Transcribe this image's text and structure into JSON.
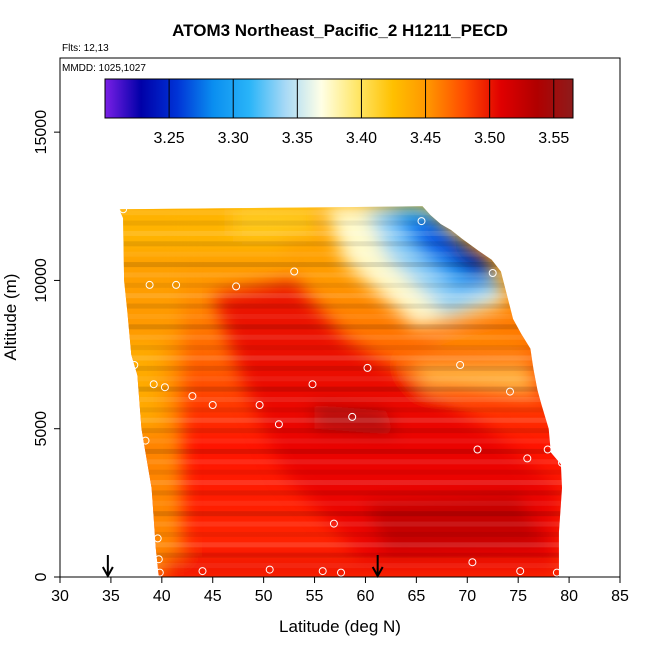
{
  "chart_data": {
    "type": "heatmap",
    "title": "ATOM3 Northeast_Pacific_2 H1211_PECD",
    "subtitle_lines": [
      "Flts: 12,13",
      "MMDD: 1025,1027"
    ],
    "xlabel": "Latitude (deg N)",
    "ylabel": "Altitude (m)",
    "xlim": [
      30,
      85
    ],
    "ylim": [
      0,
      17500
    ],
    "x_ticks": [
      "30",
      "35",
      "40",
      "45",
      "50",
      "55",
      "60",
      "65",
      "70",
      "75",
      "80",
      "85"
    ],
    "x_tick_values": [
      30,
      35,
      40,
      45,
      50,
      55,
      60,
      65,
      70,
      75,
      80,
      85
    ],
    "y_ticks": [
      "0",
      "5000",
      "10000",
      "15000"
    ],
    "y_tick_values": [
      0,
      5000,
      10000,
      15000
    ],
    "colorbar": {
      "min": 3.2,
      "max": 3.565,
      "tick_labels": [
        "3.25",
        "3.30",
        "3.35",
        "3.40",
        "3.45",
        "3.50",
        "3.55"
      ],
      "tick_values": [
        3.25,
        3.3,
        3.35,
        3.4,
        3.45,
        3.5,
        3.55
      ],
      "colors": [
        "#7a1fe6",
        "#0000a8",
        "#0033d6",
        "#0a8ef0",
        "#29b4f8",
        "#a7d9f6",
        "#ffffe6",
        "#ffe76a",
        "#ffc000",
        "#ff9400",
        "#ff4a00",
        "#e00000",
        "#b00000",
        "#8e1b1b"
      ]
    },
    "observation_points": [
      [
        36.2,
        12400
      ],
      [
        38.8,
        9850
      ],
      [
        41.4,
        9850
      ],
      [
        47.3,
        9800
      ],
      [
        53,
        10300
      ],
      [
        65.5,
        12000
      ],
      [
        72.5,
        10250
      ],
      [
        37.3,
        7150
      ],
      [
        39.2,
        6500
      ],
      [
        40.3,
        6400
      ],
      [
        43,
        6100
      ],
      [
        45,
        5800
      ],
      [
        49.6,
        5800
      ],
      [
        51.5,
        5150
      ],
      [
        54.8,
        6500
      ],
      [
        58.7,
        5400
      ],
      [
        60.2,
        7050
      ],
      [
        69.3,
        7150
      ],
      [
        76.8,
        7400
      ],
      [
        74.2,
        6250
      ],
      [
        38.4,
        4600
      ],
      [
        71,
        4300
      ],
      [
        75.9,
        4000
      ],
      [
        77.9,
        4300
      ],
      [
        79.3,
        3850
      ],
      [
        39.6,
        1300
      ],
      [
        56.9,
        1800
      ],
      [
        39.7,
        600
      ],
      [
        39.8,
        150
      ],
      [
        44,
        200
      ],
      [
        50.6,
        250
      ],
      [
        55.8,
        200
      ],
      [
        57.6,
        150
      ],
      [
        70.5,
        500
      ],
      [
        75.2,
        200
      ],
      [
        78.8,
        150
      ]
    ],
    "flight_leg_markers_lat": [
      34.7,
      61.2
    ],
    "envelope": [
      [
        35.8,
        12400
      ],
      [
        36.2,
        12100
      ],
      [
        36.3,
        10000
      ],
      [
        36.6,
        9000
      ],
      [
        37,
        7500
      ],
      [
        37.6,
        6800
      ],
      [
        38,
        5000
      ],
      [
        38.5,
        4000
      ],
      [
        39,
        3000
      ],
      [
        39.2,
        2000
      ],
      [
        39.4,
        1000
      ],
      [
        39.7,
        0
      ],
      [
        79,
        0
      ],
      [
        79,
        1500
      ],
      [
        79.3,
        3000
      ],
      [
        79.2,
        3800
      ],
      [
        78.2,
        4200
      ],
      [
        78,
        5000
      ],
      [
        77.3,
        5800
      ],
      [
        76.9,
        6300
      ],
      [
        76.5,
        7000
      ],
      [
        76.2,
        7700
      ],
      [
        75.3,
        8200
      ],
      [
        74.5,
        8700
      ],
      [
        73.9,
        9500
      ],
      [
        73.3,
        10300
      ],
      [
        72.4,
        10700
      ],
      [
        71.1,
        11000
      ],
      [
        69.5,
        11400
      ],
      [
        68.4,
        11700
      ],
      [
        67.4,
        11900
      ],
      [
        66.4,
        12200
      ],
      [
        65.6,
        12500
      ]
    ]
  }
}
